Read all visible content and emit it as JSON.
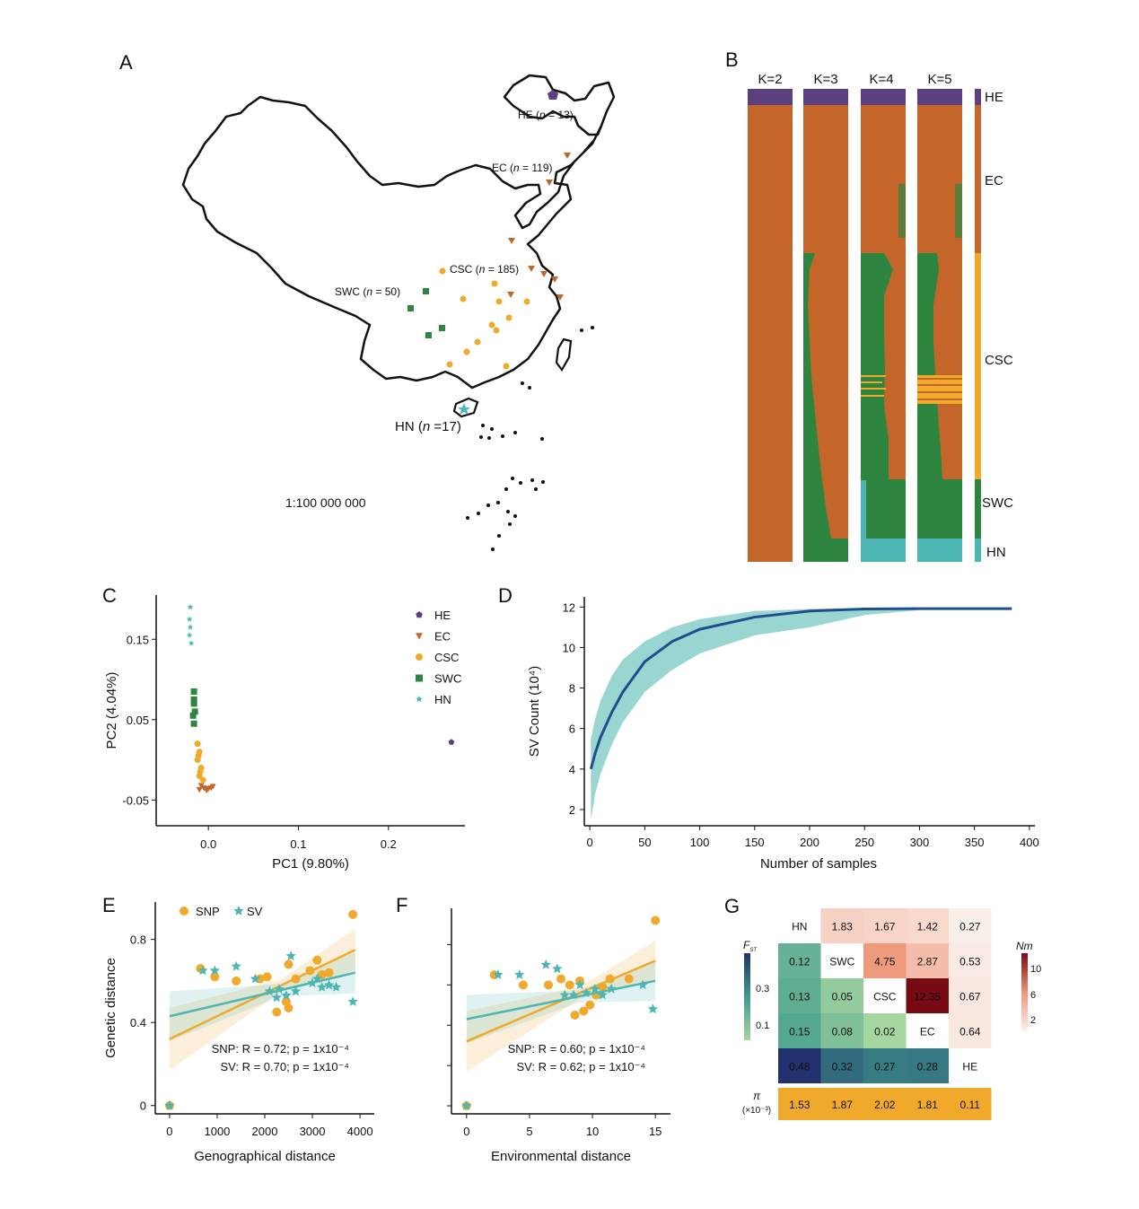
{
  "panels": {
    "a": "A",
    "b": "B",
    "c": "C",
    "d": "D",
    "e": "E",
    "f": "F",
    "g": "G"
  },
  "colors": {
    "HE": "#5b3f7e",
    "EC": "#c4662a",
    "CSC": "#f0a92b",
    "SWC": "#2e8540",
    "HN": "#4db6b2",
    "line_d": "#1f4e8c"
  },
  "map": {
    "scale": "1:100 000 000",
    "groups": [
      {
        "code": "HE",
        "n": "13",
        "marker": "pentagon"
      },
      {
        "code": "EC",
        "n": "119",
        "marker": "triangle-down"
      },
      {
        "code": "CSC",
        "n": "185",
        "marker": "circle"
      },
      {
        "code": "SWC",
        "n": "50",
        "marker": "square"
      },
      {
        "code": "HN",
        "n": "17",
        "marker": "star"
      }
    ]
  },
  "structure": {
    "k_labels": [
      "K=2",
      "K=3",
      "K=4",
      "K=5"
    ],
    "group_labels": [
      "HE",
      "EC",
      "CSC",
      "SWC",
      "HN"
    ]
  },
  "chart_data": [
    {
      "panel": "C",
      "type": "scatter",
      "xlabel": "PC1 (9.80%)",
      "ylabel": "PC2 (4.04%)",
      "xticks": [
        "0.0",
        "0.1",
        "0.2"
      ],
      "yticks": [
        "0.15",
        "0.05",
        "-0.05"
      ],
      "xlim": [
        -0.058,
        0.285
      ],
      "ylim": [
        -0.082,
        0.205
      ],
      "legend_position": "top-right",
      "series": [
        {
          "name": "HE",
          "marker": "pentagon",
          "points": [
            [
              0.27,
              0.022
            ]
          ]
        },
        {
          "name": "EC",
          "marker": "triangle-down",
          "points": [
            [
              -0.01,
              -0.037
            ],
            [
              -0.005,
              -0.035
            ],
            [
              0.0,
              -0.036
            ],
            [
              0.005,
              -0.033
            ],
            [
              -0.008,
              -0.032
            ],
            [
              -0.002,
              -0.038
            ],
            [
              0.003,
              -0.035
            ]
          ]
        },
        {
          "name": "CSC",
          "marker": "circle",
          "points": [
            [
              -0.012,
              0.02
            ],
            [
              -0.01,
              0.01
            ],
            [
              -0.012,
              0.0
            ],
            [
              -0.008,
              -0.01
            ],
            [
              -0.01,
              -0.02
            ],
            [
              -0.006,
              -0.025
            ],
            [
              -0.009,
              -0.015
            ],
            [
              -0.011,
              0.005
            ]
          ]
        },
        {
          "name": "SWC",
          "marker": "square",
          "points": [
            [
              -0.016,
              0.085
            ],
            [
              -0.016,
              0.07
            ],
            [
              -0.017,
              0.055
            ],
            [
              -0.015,
              0.06
            ],
            [
              -0.016,
              0.045
            ],
            [
              -0.016,
              0.075
            ]
          ]
        },
        {
          "name": "HN",
          "marker": "star",
          "points": [
            [
              -0.02,
              0.19
            ],
            [
              -0.021,
              0.175
            ],
            [
              -0.02,
              0.165
            ],
            [
              -0.021,
              0.155
            ],
            [
              -0.019,
              0.145
            ]
          ]
        }
      ]
    },
    {
      "panel": "D",
      "type": "line",
      "xlabel": "Number of samples",
      "ylabel": "SV Count (10⁴)",
      "xticks": [
        "0",
        "50",
        "100",
        "150",
        "200",
        "250",
        "300",
        "350",
        "400"
      ],
      "yticks": [
        "2",
        "4",
        "6",
        "8",
        "10",
        "12"
      ],
      "xlim": [
        -5,
        405
      ],
      "ylim": [
        1.2,
        12.5
      ],
      "x": [
        1,
        5,
        10,
        20,
        30,
        50,
        75,
        100,
        150,
        200,
        250,
        300,
        350,
        384
      ],
      "series": [
        {
          "values": [
            4.0,
            4.8,
            5.6,
            6.8,
            7.8,
            9.3,
            10.3,
            10.9,
            11.5,
            11.8,
            11.9,
            11.92,
            11.92,
            11.92
          ]
        }
      ],
      "band": {
        "upper": [
          5.5,
          6.5,
          7.4,
          8.6,
          9.4,
          10.3,
          11.0,
          11.4,
          11.8,
          11.9,
          11.95,
          11.95,
          11.95,
          11.95
        ],
        "lower": [
          1.5,
          2.8,
          3.8,
          5.2,
          6.3,
          7.8,
          8.9,
          9.7,
          10.6,
          11.0,
          11.6,
          11.85,
          11.9,
          11.92
        ]
      }
    },
    {
      "panel": "E",
      "type": "scatter",
      "xlabel": "Genographical distance",
      "ylabel": "Genetic distance",
      "xticks": [
        "0",
        "1000",
        "2000",
        "3000",
        "4000"
      ],
      "yticks": [
        "0",
        "0.4",
        "0.8"
      ],
      "xlim": [
        -300,
        4300
      ],
      "ylim": [
        -0.04,
        0.98
      ],
      "legend": [
        "SNP",
        "SV"
      ],
      "series": [
        {
          "name": "SNP",
          "marker": "circle",
          "points": [
            [
              0,
              0
            ],
            [
              650,
              0.66
            ],
            [
              950,
              0.62
            ],
            [
              1400,
              0.6
            ],
            [
              1900,
              0.61
            ],
            [
              2050,
              0.62
            ],
            [
              2250,
              0.45
            ],
            [
              2450,
              0.5
            ],
            [
              2500,
              0.47
            ],
            [
              2500,
              0.68
            ],
            [
              2650,
              0.61
            ],
            [
              2950,
              0.65
            ],
            [
              3100,
              0.7
            ],
            [
              3200,
              0.63
            ],
            [
              3350,
              0.64
            ],
            [
              3850,
              0.92
            ]
          ],
          "trend": [
            [
              0,
              0.32
            ],
            [
              3900,
              0.75
            ]
          ]
        },
        {
          "name": "SV",
          "marker": "star",
          "points": [
            [
              0,
              0
            ],
            [
              700,
              0.65
            ],
            [
              950,
              0.65
            ],
            [
              1400,
              0.67
            ],
            [
              1800,
              0.61
            ],
            [
              2100,
              0.55
            ],
            [
              2250,
              0.52
            ],
            [
              2300,
              0.56
            ],
            [
              2450,
              0.53
            ],
            [
              2550,
              0.72
            ],
            [
              2650,
              0.55
            ],
            [
              3000,
              0.59
            ],
            [
              3100,
              0.61
            ],
            [
              3200,
              0.57
            ],
            [
              3350,
              0.58
            ],
            [
              3500,
              0.57
            ],
            [
              3850,
              0.5
            ]
          ],
          "trend": [
            [
              0,
              0.43
            ],
            [
              3900,
              0.64
            ]
          ]
        }
      ],
      "annotations": [
        "SNP: R = 0.72; p = 1x10⁻⁴",
        "SV: R = 0.70; p = 1x10⁻⁴"
      ]
    },
    {
      "panel": "F",
      "type": "scatter",
      "xlabel": "Environmental distance",
      "ylabel": "",
      "xticks": [
        "0",
        "5",
        "10",
        "15"
      ],
      "yticks": [],
      "xlim": [
        -1.2,
        16.2
      ],
      "ylim": [
        -0.04,
        0.98
      ],
      "series": [
        {
          "name": "SNP",
          "marker": "circle",
          "points": [
            [
              0,
              0
            ],
            [
              2.2,
              0.65
            ],
            [
              4.5,
              0.6
            ],
            [
              6.5,
              0.6
            ],
            [
              7.5,
              0.63
            ],
            [
              8.2,
              0.6
            ],
            [
              8.6,
              0.45
            ],
            [
              9.0,
              0.62
            ],
            [
              9.3,
              0.47
            ],
            [
              9.8,
              0.5
            ],
            [
              10.3,
              0.55
            ],
            [
              10.8,
              0.59
            ],
            [
              11.4,
              0.63
            ],
            [
              12.9,
              0.63
            ],
            [
              15.0,
              0.92
            ]
          ],
          "trend": [
            [
              0,
              0.32
            ],
            [
              15,
              0.72
            ]
          ]
        },
        {
          "name": "SV",
          "marker": "star",
          "points": [
            [
              0,
              0
            ],
            [
              2.5,
              0.65
            ],
            [
              4.2,
              0.65
            ],
            [
              6.3,
              0.7
            ],
            [
              7.2,
              0.68
            ],
            [
              7.8,
              0.55
            ],
            [
              8.5,
              0.55
            ],
            [
              9.0,
              0.6
            ],
            [
              9.5,
              0.56
            ],
            [
              10.2,
              0.58
            ],
            [
              10.8,
              0.55
            ],
            [
              11.5,
              0.58
            ],
            [
              14.0,
              0.6
            ],
            [
              14.8,
              0.48
            ]
          ],
          "trend": [
            [
              0,
              0.43
            ],
            [
              15,
              0.62
            ]
          ]
        }
      ],
      "annotations": [
        "SNP: R = 0.60; p = 1x10⁻⁴",
        "SV: R = 0.62; p = 1x10⁻⁴"
      ]
    },
    {
      "panel": "G",
      "type": "heatmap",
      "groups": [
        "HN",
        "SWC",
        "CSC",
        "EC",
        "HE"
      ],
      "upper_nm": [
        [
          "1.83",
          "1.67",
          "1.42",
          "0.27"
        ],
        [
          "4.75",
          "2.87",
          "0.53"
        ],
        [
          "12.35",
          "0.67"
        ],
        [
          "0.64"
        ]
      ],
      "lower_fst": [
        [
          "0.12"
        ],
        [
          "0.13",
          "0.05"
        ],
        [
          "0.15",
          "0.08",
          "0.02"
        ],
        [
          "0.48",
          "0.32",
          "0.27",
          "0.28"
        ]
      ],
      "pi_label": "π",
      "pi_unit": "(×10⁻³)",
      "pi": [
        "1.53",
        "1.87",
        "2.02",
        "1.81",
        "0.11"
      ],
      "fst_legend": {
        "title": "F",
        "subscript": "ST",
        "ticks": [
          "0.3",
          "0.1"
        ]
      },
      "nm_legend": {
        "title": "Nm",
        "ticks": [
          "10",
          "6",
          "2"
        ]
      }
    }
  ]
}
